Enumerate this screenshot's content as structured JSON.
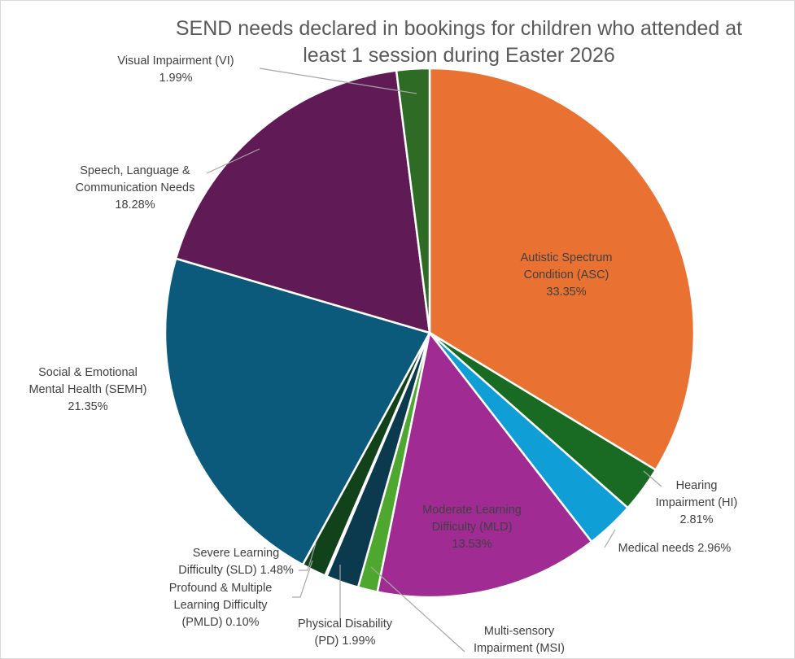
{
  "chart_data": {
    "type": "pie",
    "title": "SEND needs declared in bookings for children who attended at least 1 session during Easter 2026",
    "title_lines": [
      "SEND needs declared in bookings for children who attended at",
      "least 1 session during Easter 2026"
    ],
    "legend": "none (data labels with leader lines)",
    "slices": [
      {
        "category": "Autistic Spectrum Condition (ASC)",
        "value": 33.35,
        "label_lines": [
          "Autistic Spectrum",
          "Condition (ASC)",
          "33.35%"
        ],
        "color": "#E97132"
      },
      {
        "category": "Hearing Impairment (HI)",
        "value": 2.81,
        "label_lines": [
          "Hearing",
          "Impairment (HI)",
          "2.81%"
        ],
        "color": "#196B24"
      },
      {
        "category": "Medical needs",
        "value": 2.96,
        "label_lines": [
          "Medical needs 2.96%"
        ],
        "color": "#0F9ED5"
      },
      {
        "category": "Moderate Learning Difficulty (MLD)",
        "value": 13.53,
        "label_lines": [
          "Moderate Learning",
          "Difficulty (MLD)",
          "13.53%"
        ],
        "color": "#A02B93"
      },
      {
        "category": "Multi-sensory Impairment (MSI)",
        "value": 1.18,
        "label_lines": [
          "Multi-sensory",
          "Impairment (MSI)"
        ],
        "color": "#4EA72E"
      },
      {
        "category": "Physical Disability (PD)",
        "value": 1.99,
        "label_lines": [
          "Physical Disability",
          "(PD) 1.99%"
        ],
        "color": "#0B3A4E"
      },
      {
        "category": "Profound & Multiple Learning Difficulty (PMLD)",
        "value": 0.1,
        "label_lines": [
          "Profound & Multiple",
          "Learning Difficulty",
          "(PMLD) 0.10%"
        ],
        "color": "#7A2F10"
      },
      {
        "category": "Severe Learning Difficulty (SLD)",
        "value": 1.48,
        "label_lines": [
          "Severe Learning",
          "Difficulty (SLD) 1.48%"
        ],
        "color": "#12421A"
      },
      {
        "category": "Social & Emotional Mental Health (SEMH)",
        "value": 21.35,
        "label_lines": [
          "Social & Emotional",
          "Mental Health (SEMH)",
          "21.35%"
        ],
        "color": "#0B5A7C"
      },
      {
        "category": "Speech, Language & Communication Needs",
        "value": 18.28,
        "label_lines": [
          "Speech, Language &",
          "Communication Needs",
          "18.28%"
        ],
        "color": "#601A56"
      },
      {
        "category": "Visual Impairment (VI)",
        "value": 1.99,
        "label_lines": [
          "Visual Impairment (VI)",
          "1.99%"
        ],
        "color": "#2E6B24"
      }
    ]
  }
}
